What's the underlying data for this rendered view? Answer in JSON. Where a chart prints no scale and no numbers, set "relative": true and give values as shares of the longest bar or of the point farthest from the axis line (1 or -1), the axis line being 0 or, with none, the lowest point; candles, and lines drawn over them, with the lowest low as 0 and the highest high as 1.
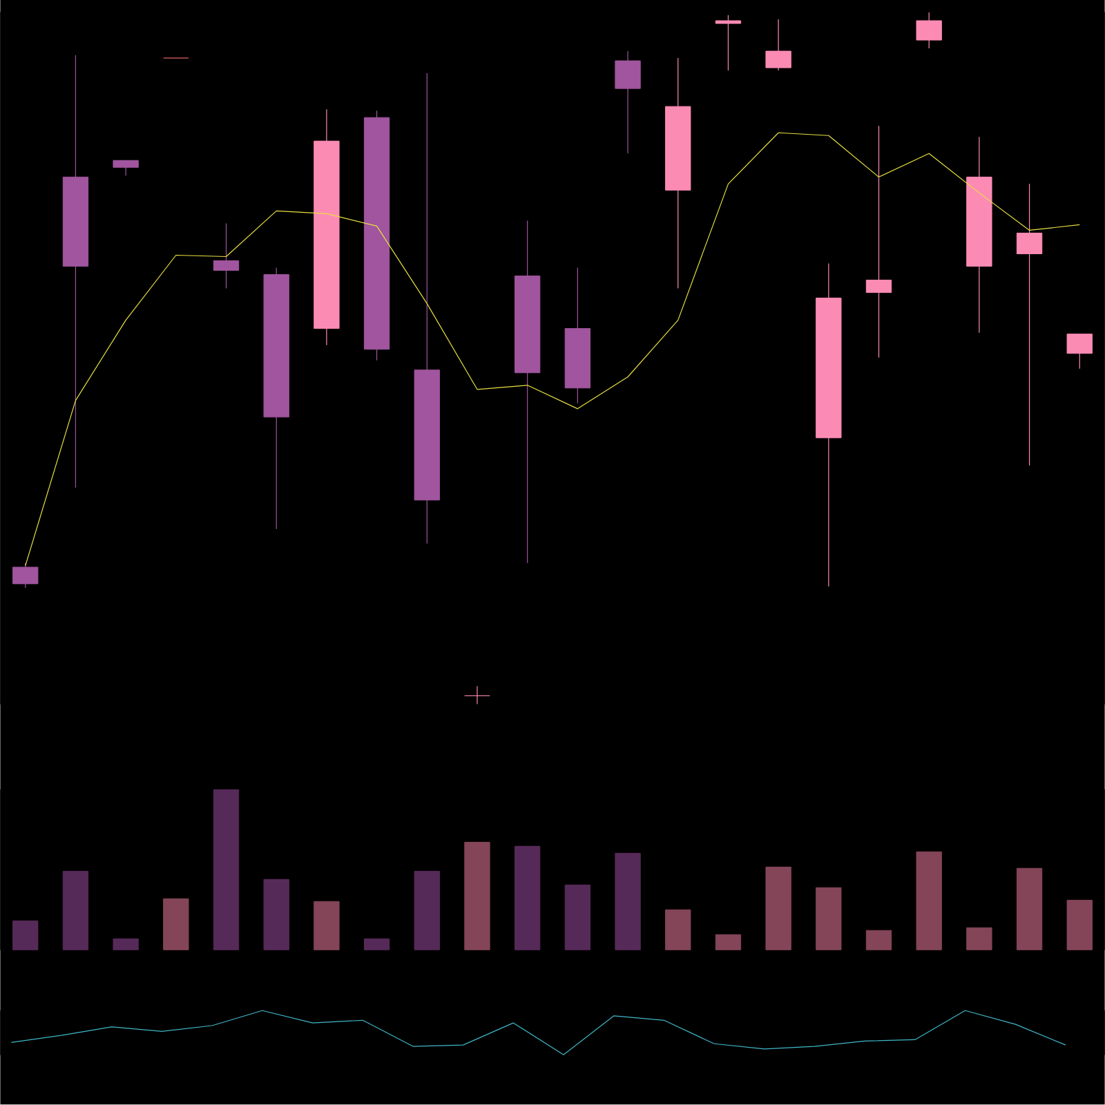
{
  "chart_data": [
    {
      "type": "candlestick",
      "relative": true,
      "categories": [
        null,
        null,
        null,
        null,
        null,
        null,
        null,
        null,
        null,
        null,
        null,
        null,
        null,
        null,
        null,
        null,
        null,
        null,
        null,
        null,
        null,
        null
      ],
      "ohlc": [
        [
          0.198,
          0.204,
          0.168,
          0.174
        ],
        [
          0.762,
          0.938,
          0.313,
          0.633
        ],
        [
          0.786,
          0.786,
          0.764,
          0.776
        ],
        [
          0.934,
          0.934,
          0.934,
          0.934
        ],
        [
          0.641,
          0.695,
          0.601,
          0.627
        ],
        [
          0.621,
          0.631,
          0.253,
          0.415
        ],
        [
          0.543,
          0.86,
          0.519,
          0.814
        ],
        [
          0.848,
          0.858,
          0.497,
          0.513
        ],
        [
          0.483,
          0.912,
          0.232,
          0.295
        ],
        [
          0.012,
          0.026,
          0,
          0.012
        ],
        [
          0.619,
          0.699,
          0.204,
          0.479
        ],
        [
          0.543,
          0.631,
          0.435,
          0.457
        ],
        [
          0.93,
          0.944,
          0.796,
          0.89
        ],
        [
          0.743,
          0.934,
          0.601,
          0.864
        ],
        [
          0.984,
          0.996,
          0.916,
          0.988
        ],
        [
          0.92,
          0.99,
          0.916,
          0.944
        ],
        [
          0.385,
          0.637,
          0.17,
          0.587
        ],
        [
          0.595,
          0.836,
          0.501,
          0.613
        ],
        [
          0.96,
          1.0,
          0.948,
          0.988
        ],
        [
          0.633,
          0.82,
          0.537,
          0.762
        ],
        [
          0.651,
          0.752,
          0.345,
          0.681
        ],
        [
          0.507,
          0.535,
          0.485,
          0.535
        ]
      ],
      "colors": [
        "#a0559e",
        "#a0559e",
        "#a0559e",
        "#c0504d",
        "#a0559e",
        "#a0559e",
        "#fc8bb4",
        "#a0559e",
        "#a0559e",
        "#fc8bb4",
        "#a0559e",
        "#a0559e",
        "#a0559e",
        "#fc8bb4",
        "#fc8bb4",
        "#fc8bb4",
        "#fc8bb4",
        "#fc8bb4",
        "#fc8bb4",
        "#fc8bb4",
        "#fc8bb4",
        "#fc8bb4"
      ],
      "series": [
        {
          "type": "line",
          "color": "#e8e040",
          "values": [
            0.2,
            0.439,
            0.555,
            0.649,
            0.647,
            0.713,
            0.709,
            0.691,
            0.579,
            0.455,
            0.461,
            0.427,
            0.473,
            0.555,
            0.752,
            0.826,
            0.822,
            0.762,
            0.796,
            0.739,
            0.685,
            0.693
          ]
        }
      ]
    },
    {
      "type": "bar",
      "relative": true,
      "categories": [
        null,
        null,
        null,
        null,
        null,
        null,
        null,
        null,
        null,
        null,
        null,
        null,
        null,
        null,
        null,
        null,
        null,
        null,
        null,
        null,
        null,
        null
      ],
      "values": [
        0.181,
        0.491,
        0.069,
        0.319,
        1,
        0.44,
        0.302,
        0.069,
        0.491,
        0.672,
        0.647,
        0.405,
        0.603,
        0.25,
        0.095,
        0.517,
        0.388,
        0.121,
        0.612,
        0.138,
        0.509,
        0.31
      ],
      "colors": [
        "#562a58",
        "#562a58",
        "#562a58",
        "#844559",
        "#562a58",
        "#562a58",
        "#844559",
        "#562a58",
        "#562a58",
        "#844559",
        "#562a58",
        "#562a58",
        "#562a58",
        "#844559",
        "#844559",
        "#844559",
        "#844559",
        "#844559",
        "#844559",
        "#844559",
        "#844559",
        "#844559"
      ]
    },
    {
      "type": "line",
      "relative": true,
      "categories": [
        null,
        null,
        null,
        null,
        null,
        null,
        null,
        null,
        null,
        null,
        null,
        null,
        null,
        null,
        null,
        null,
        null,
        null,
        null,
        null,
        null,
        null
      ],
      "series": [
        {
          "color": "#3fb8c8",
          "values": [
            0.28,
            0.44,
            0.63,
            0.53,
            0.66,
            1,
            0.72,
            0.78,
            0.19,
            0.22,
            0.72,
            0,
            0.88,
            0.78,
            0.25,
            0.13,
            0.19,
            0.31,
            0.34,
            1,
            0.69,
            0.22
          ]
        }
      ]
    }
  ]
}
